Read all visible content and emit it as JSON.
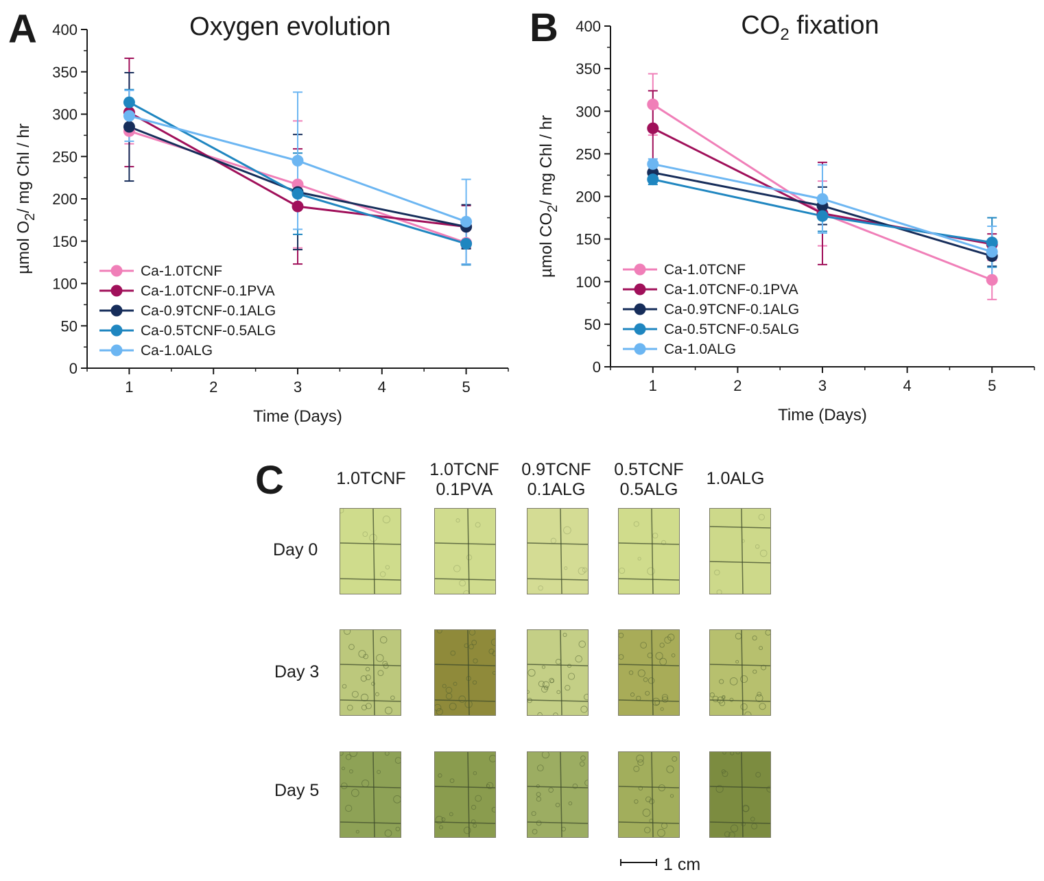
{
  "panels": {
    "A": {
      "letter": "A"
    },
    "B": {
      "letter": "B"
    },
    "C": {
      "letter": "C"
    }
  },
  "chart_data": [
    {
      "id": "A",
      "type": "line",
      "title": "Oxygen evolution",
      "title_sub": "",
      "xlabel": "Time (Days)",
      "ylabel_parts": [
        "µmol O",
        "2",
        "/ mg Chl / hr"
      ],
      "x_ticks": [
        1,
        2,
        3,
        4,
        5
      ],
      "y_ticks": [
        0,
        50,
        100,
        150,
        200,
        250,
        300,
        350,
        400
      ],
      "xlim": [
        0.5,
        5.5
      ],
      "ylim": [
        0,
        400
      ],
      "legend_position": "bottom-left",
      "x": [
        1,
        3,
        5
      ],
      "series": [
        {
          "name": "Ca-1.0TCNF",
          "color": "#f07fb8",
          "values": [
            280,
            217,
            148
          ],
          "err": [
            15,
            75,
            25
          ]
        },
        {
          "name": "Ca-1.0TCNF-0.1PVA",
          "color": "#a0105a",
          "values": [
            302,
            191,
            167
          ],
          "err": [
            64,
            68,
            25
          ]
        },
        {
          "name": "Ca-0.9TCNF-0.1ALG",
          "color": "#162d5a",
          "values": [
            285,
            208,
            167
          ],
          "err": [
            64,
            68,
            26
          ]
        },
        {
          "name": "Ca-0.5TCNF-0.5ALG",
          "color": "#1f86c0",
          "values": [
            314,
            206,
            147
          ],
          "err": [
            15,
            48,
            25
          ]
        },
        {
          "name": "Ca-1.0ALG",
          "color": "#6cb6f2",
          "values": [
            298,
            245,
            173
          ],
          "err": [
            30,
            81,
            50
          ]
        }
      ]
    },
    {
      "id": "B",
      "type": "line",
      "title": "CO",
      "title_sub": "2",
      "title_rest": " fixation",
      "xlabel": "Time (Days)",
      "ylabel_parts": [
        "µmol CO",
        "2",
        "/ mg Chl / hr"
      ],
      "x_ticks": [
        1,
        2,
        3,
        4,
        5
      ],
      "y_ticks": [
        0,
        50,
        100,
        150,
        200,
        250,
        300,
        350,
        400
      ],
      "xlim": [
        0.5,
        5.5
      ],
      "ylim": [
        0,
        400
      ],
      "legend_position": "bottom-left",
      "x": [
        1,
        3,
        5
      ],
      "series": [
        {
          "name": "Ca-1.0TCNF",
          "color": "#f07fb8",
          "values": [
            308,
            180,
            102
          ],
          "err": [
            36,
            38,
            23
          ]
        },
        {
          "name": "Ca-1.0TCNF-0.1PVA",
          "color": "#a0105a",
          "values": [
            280,
            180,
            144
          ],
          "err": [
            44,
            60,
            12
          ]
        },
        {
          "name": "Ca-0.9TCNF-0.1ALG",
          "color": "#162d5a",
          "values": [
            228,
            189,
            130
          ],
          "err": [
            8,
            22,
            12
          ]
        },
        {
          "name": "Ca-0.5TCNF-0.5ALG",
          "color": "#1f86c0",
          "values": [
            220,
            177,
            146
          ],
          "err": [
            6,
            18,
            29
          ]
        },
        {
          "name": "Ca-1.0ALG",
          "color": "#6cb6f2",
          "values": [
            238,
            197,
            135
          ],
          "err": [
            6,
            40,
            30
          ]
        }
      ]
    }
  ],
  "image_grid": {
    "columns": [
      {
        "line1": "1.0TCNF",
        "line2": ""
      },
      {
        "line1": "1.0TCNF",
        "line2": "0.1PVA"
      },
      {
        "line1": "0.9TCNF",
        "line2": "0.1ALG"
      },
      {
        "line1": "0.5TCNF",
        "line2": "0.5ALG"
      },
      {
        "line1": "1.0ALG",
        "line2": ""
      }
    ],
    "rows": [
      "Day 0",
      "Day 3",
      "Day 5"
    ],
    "scale_label": "1 cm",
    "tile_colors": [
      [
        "#cfdc8c",
        "#d0dc8e",
        "#d4dc94",
        "#d0dc8c",
        "#cdd98a"
      ],
      [
        "#bcc87c",
        "#8f8a3a",
        "#c4cf86",
        "#a8ac58",
        "#b7c06e"
      ],
      [
        "#8ea256",
        "#8a9c4e",
        "#9cad62",
        "#a2ae5c",
        "#7c8c40"
      ]
    ]
  }
}
